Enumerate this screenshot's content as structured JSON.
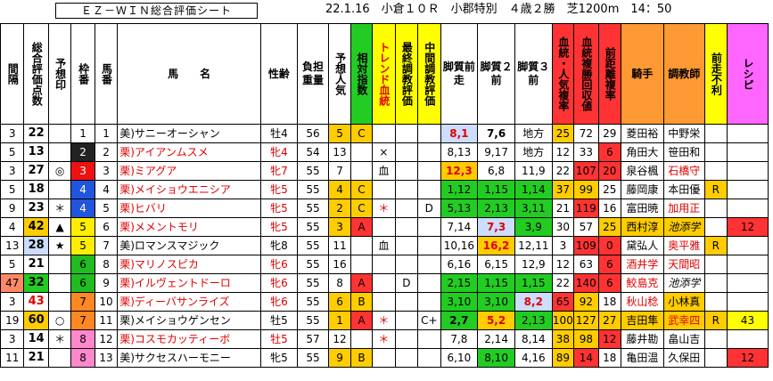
{
  "header": {
    "title": "ＥＺ－ＷＩＮ総合評価シート",
    "race_info": "22.1.16　小倉１０Ｒ　小郡特別　４歳２勝　芝1200m　14：50"
  },
  "columns": [
    {
      "key": "interval",
      "label": "間隔",
      "bg": "#ffffff",
      "color": "#000",
      "v": true
    },
    {
      "key": "score",
      "label": "総合評価点数",
      "bg": "#ffffff",
      "color": "#000",
      "v": true
    },
    {
      "key": "mark",
      "label": "予想印",
      "bg": "#ffffff",
      "color": "#000",
      "v": true
    },
    {
      "key": "waku",
      "label": "枠番",
      "bg": "#ffffff",
      "color": "#000",
      "v": true
    },
    {
      "key": "uma",
      "label": "馬番",
      "bg": "#ffffff",
      "color": "#000",
      "v": true
    },
    {
      "key": "name",
      "label": "馬　　名",
      "bg": "#ffffff",
      "color": "#000",
      "v": false
    },
    {
      "key": "sexage",
      "label": "性齢",
      "bg": "#ffffff",
      "color": "#000",
      "v": false
    },
    {
      "key": "weight",
      "label": "負担重量",
      "bg": "#ffffff",
      "color": "#000",
      "v": false
    },
    {
      "key": "pop",
      "label": "予想人気",
      "bg": "#ffffff",
      "color": "#000",
      "v": true
    },
    {
      "key": "rel",
      "label": "相対指数",
      "bg": "#22cc22",
      "color": "#000",
      "v": true
    },
    {
      "key": "trend",
      "label": "トレンド血統",
      "bg": "#ffff00",
      "color": "#e00000",
      "v": true
    },
    {
      "key": "final",
      "label": "最終調教評価",
      "bg": "#ffff00",
      "color": "#000",
      "v": true
    },
    {
      "key": "mid",
      "label": "中間調教評価",
      "bg": "#ffff00",
      "color": "#000",
      "v": true
    },
    {
      "key": "q1",
      "label": "脚質前走",
      "bg": "#ffffff",
      "color": "#000",
      "v": false
    },
    {
      "key": "q2",
      "label": "脚質２前",
      "bg": "#ffffff",
      "color": "#000",
      "v": false
    },
    {
      "key": "q3",
      "label": "脚質３前",
      "bg": "#ffffff",
      "color": "#000",
      "v": false
    },
    {
      "key": "bloodpop",
      "label": "血統・人気複率",
      "bg": "#ff3333",
      "color": "#000",
      "v": true
    },
    {
      "key": "bloodrec",
      "label": "血統複勝回収値",
      "bg": "#ff3333",
      "color": "#000",
      "v": true
    },
    {
      "key": "dist",
      "label": "前距離複率",
      "bg": "#ff3333",
      "color": "#000",
      "v": true
    },
    {
      "key": "jockey",
      "label": "騎手",
      "bg": "#ff9933",
      "color": "#000",
      "v": false
    },
    {
      "key": "trainer",
      "label": "調教師",
      "bg": "#ff9933",
      "color": "#000",
      "v": false
    },
    {
      "key": "prev",
      "label": "前走不利",
      "bg": "#ffff00",
      "color": "#000",
      "v": true
    },
    {
      "key": "recipe",
      "label": "レシピ",
      "bg": "#ff66ff",
      "color": "#000",
      "v": true
    }
  ],
  "rows": [
    {
      "interval": "3",
      "score": "22",
      "mark": "",
      "waku": "1",
      "uma": "1",
      "name": "美)サニーオーシャン",
      "name_color": "#000",
      "sexage": "牡4",
      "weight": "56",
      "pop": "5",
      "rel": "C",
      "trend": "",
      "final": "",
      "mid": "",
      "q1": "8,1",
      "q2": "7,6",
      "q3": "地方",
      "bloodpop": "25",
      "bloodrec": "72",
      "dist": "29",
      "jockey": "菱田裕",
      "trainer": "中野栄",
      "prev": "",
      "recipe": ""
    },
    {
      "interval": "5",
      "score": "13",
      "mark": "",
      "waku": "2",
      "uma": "2",
      "name": "栗)アイアンムスメ",
      "name_color": "#e00000",
      "sexage": "牝4",
      "weight": "54",
      "pop": "13",
      "rel": "",
      "trend": "×",
      "final": "",
      "mid": "",
      "q1": "8,13",
      "q2": "9,17",
      "q3": "地方",
      "bloodpop": "12",
      "bloodrec": "33",
      "dist": "6",
      "jockey": "角田大",
      "trainer": "笹田和",
      "prev": "",
      "recipe": ""
    },
    {
      "interval": "3",
      "score": "27",
      "mark": "◎",
      "waku": "3",
      "uma": "3",
      "name": "栗)ミアグア",
      "name_color": "#e00000",
      "sexage": "牝7",
      "weight": "55",
      "pop": "7",
      "rel": "",
      "trend": "血",
      "final": "",
      "mid": "",
      "q1": "12,3",
      "q2": "6,8",
      "q3": "11,9",
      "bloodpop": "22",
      "bloodrec": "107",
      "dist": "20",
      "jockey": "泉谷楓",
      "trainer": "石橋守",
      "prev": "",
      "recipe": ""
    },
    {
      "interval": "5",
      "score": "18",
      "mark": "",
      "waku": "4",
      "uma": "4",
      "name": "栗)メイショウエニシア",
      "name_color": "#e00000",
      "sexage": "牝5",
      "weight": "55",
      "pop": "4",
      "rel": "C",
      "trend": "",
      "final": "",
      "mid": "",
      "q1": "1,12",
      "q2": "1,15",
      "q3": "1,14",
      "bloodpop": "37",
      "bloodrec": "99",
      "dist": "25",
      "jockey": "藤岡康",
      "trainer": "本田優",
      "prev": "R",
      "recipe": ""
    },
    {
      "interval": "9",
      "score": "23",
      "mark": "＊",
      "waku": "4",
      "uma": "5",
      "name": "栗)ヒバリ",
      "name_color": "#e00000",
      "sexage": "牝5",
      "weight": "55",
      "pop": "2",
      "rel": "C",
      "trend": "＊",
      "final": "",
      "mid": "D",
      "q1": "5,13",
      "q2": "2,13",
      "q3": "3,11",
      "bloodpop": "21",
      "bloodrec": "119",
      "dist": "16",
      "jockey": "富田暁",
      "trainer": "加用正",
      "prev": "",
      "recipe": ""
    },
    {
      "interval": "4",
      "score": "42",
      "mark": "▲",
      "waku": "5",
      "uma": "6",
      "name": "栗)メメントモリ",
      "name_color": "#e00000",
      "sexage": "牝5",
      "weight": "55",
      "pop": "3",
      "rel": "A",
      "trend": "",
      "final": "",
      "mid": "",
      "q1": "7,14",
      "q2": "7,3",
      "q3": "3,9",
      "bloodpop": "30",
      "bloodrec": "57",
      "dist": "25",
      "jockey": "西村淳",
      "trainer": "池添学",
      "prev": "",
      "recipe": "12"
    },
    {
      "interval": "13",
      "score": "28",
      "mark": "★",
      "waku": "5",
      "uma": "7",
      "name": "美)ロマンスマジック",
      "name_color": "#000",
      "sexage": "牝8",
      "weight": "55",
      "pop": "11",
      "rel": "",
      "trend": "血",
      "final": "",
      "mid": "",
      "q1": "10,16",
      "q2": "16,2",
      "q3": "12,11",
      "bloodpop": "3",
      "bloodrec": "109",
      "dist": "0",
      "jockey": "黛弘人",
      "trainer": "奥平雅",
      "prev": "R",
      "recipe": ""
    },
    {
      "interval": "5",
      "score": "21",
      "mark": "",
      "waku": "6",
      "uma": "8",
      "name": "栗)マリノスピカ",
      "name_color": "#e00000",
      "sexage": "牝6",
      "weight": "55",
      "pop": "16",
      "rel": "",
      "trend": "",
      "final": "",
      "mid": "",
      "q1": "6,16",
      "q2": "6,15",
      "q3": "12,9",
      "bloodpop": "12",
      "bloodrec": "63",
      "dist": "6",
      "jockey": "酒井学",
      "trainer": "天間昭",
      "prev": "",
      "recipe": ""
    },
    {
      "interval": "47",
      "score": "32",
      "mark": "",
      "waku": "6",
      "uma": "9",
      "name": "栗)イルヴェントドーロ",
      "name_color": "#e00000",
      "sexage": "牝6",
      "weight": "55",
      "pop": "8",
      "rel": "A",
      "trend": "",
      "final": "D",
      "mid": "",
      "q1": "2,15",
      "q2": "1,15",
      "q3": "1,15",
      "bloodpop": "22",
      "bloodrec": "140",
      "dist": "6",
      "jockey": "鮫島克",
      "trainer": "池添学",
      "prev": "",
      "recipe": ""
    },
    {
      "interval": "3",
      "score": "43",
      "mark": "",
      "waku": "7",
      "uma": "10",
      "name": "栗)ディーバサンライズ",
      "name_color": "#e00000",
      "sexage": "牝6",
      "weight": "55",
      "pop": "6",
      "rel": "B",
      "trend": "",
      "final": "",
      "mid": "",
      "q1": "3,10",
      "q2": "3,10",
      "q3": "8,2",
      "bloodpop": "65",
      "bloodrec": "92",
      "dist": "18",
      "jockey": "秋山稔",
      "trainer": "小林真",
      "prev": "",
      "recipe": ""
    },
    {
      "interval": "19",
      "score": "60",
      "mark": "○",
      "waku": "7",
      "uma": "11",
      "name": "栗)メイショウゲンセン",
      "name_color": "#000",
      "sexage": "牡5",
      "weight": "55",
      "pop": "1",
      "rel": "A",
      "trend": "＊",
      "final": "",
      "mid": "C+",
      "q1": "2,7",
      "q2": "5,2",
      "q3": "2,13",
      "bloodpop": "100",
      "bloodrec": "127",
      "dist": "27",
      "jockey": "吉田隼",
      "trainer": "武幸四",
      "prev": "R",
      "recipe": "43"
    },
    {
      "interval": "3",
      "score": "14",
      "mark": "＊",
      "waku": "8",
      "uma": "12",
      "name": "栗)コスモカッティーボ",
      "name_color": "#e00000",
      "sexage": "牡5",
      "weight": "57",
      "pop": "12",
      "rel": "",
      "trend": "＊",
      "final": "",
      "mid": "",
      "q1": "7,8",
      "q2": "2,14",
      "q3": "8,14",
      "bloodpop": "38",
      "bloodrec": "98",
      "dist": "12",
      "jockey": "藤井勘",
      "trainer": "畠山吉",
      "prev": "",
      "recipe": ""
    },
    {
      "interval": "11",
      "score": "21",
      "mark": "",
      "waku": "8",
      "uma": "13",
      "name": "美)サクセスハーモニー",
      "name_color": "#000",
      "sexage": "牝5",
      "weight": "55",
      "pop": "9",
      "rel": "B",
      "trend": "",
      "final": "",
      "mid": "",
      "q1": "6,10",
      "q2": "8,10",
      "q3": "4,16",
      "bloodpop": "89",
      "bloodrec": "14",
      "dist": "18",
      "jockey": "亀田温",
      "trainer": "久保田",
      "prev": "",
      "recipe": "12"
    }
  ],
  "colors": {
    "waku": {
      "1": "#ffffff",
      "2": "#222222",
      "3": "#ee1111",
      "4": "#2255dd",
      "5": "#ffee00",
      "6": "#22bb22",
      "7": "#ff8822",
      "8": "#ff88cc"
    },
    "green": "#22cc22",
    "yellow": "#ffff00",
    "orange": "#ff9933",
    "red": "#ff3333",
    "darkred": "#dd0000",
    "pink": "#ff66ff",
    "lightblue": "#ccddff",
    "gold": "#ffcc00"
  },
  "cell_styles": [
    {
      "row": 0,
      "col": "q1",
      "bg": "#ccddff",
      "color": "#e00000",
      "bold": true
    },
    {
      "row": 0,
      "col": "q2",
      "bold": true
    },
    {
      "row": 0,
      "col": "pop",
      "bg": "#ffcc00"
    },
    {
      "row": 0,
      "col": "rel",
      "bg": "#ffcc00"
    },
    {
      "row": 0,
      "col": "bloodpop",
      "bg": "#ffcc00"
    },
    {
      "row": 0,
      "col": "trainer",
      "bg": "#ffffff"
    },
    {
      "row": 1,
      "col": "dist",
      "bg": "#ff3333"
    },
    {
      "row": 2,
      "col": "q1",
      "bg": "#ffcc00",
      "color": "#e00000",
      "bold": true
    },
    {
      "row": 2,
      "col": "bloodrec",
      "bg": "#ff3333"
    },
    {
      "row": 2,
      "col": "dist",
      "bg": "#ff3333"
    },
    {
      "row": 2,
      "col": "trainer",
      "color": "#e00000"
    },
    {
      "row": 3,
      "col": "pop",
      "bg": "#ffcc00"
    },
    {
      "row": 3,
      "col": "rel",
      "bg": "#ffcc00"
    },
    {
      "row": 3,
      "col": "q1",
      "bg": "#22cc22"
    },
    {
      "row": 3,
      "col": "q2",
      "bg": "#22cc22"
    },
    {
      "row": 3,
      "col": "q3",
      "bg": "#22cc22"
    },
    {
      "row": 3,
      "col": "bloodpop",
      "bg": "#ffcc00"
    },
    {
      "row": 3,
      "col": "bloodrec",
      "bg": "#ffcc00"
    },
    {
      "row": 3,
      "col": "prev",
      "bg": "#ffcc00"
    },
    {
      "row": 4,
      "col": "pop",
      "bg": "#ffcc00"
    },
    {
      "row": 4,
      "col": "rel",
      "bg": "#ffcc00"
    },
    {
      "row": 4,
      "col": "trend",
      "color": "#e00000"
    },
    {
      "row": 4,
      "col": "q1",
      "bg": "#22cc22"
    },
    {
      "row": 4,
      "col": "q2",
      "bg": "#22cc22"
    },
    {
      "row": 4,
      "col": "q3",
      "bg": "#22cc22"
    },
    {
      "row": 4,
      "col": "bloodrec",
      "bg": "#ff3333"
    },
    {
      "row": 4,
      "col": "trainer",
      "color": "#e00000"
    },
    {
      "row": 5,
      "col": "score",
      "bg": "#ffcc00",
      "bold": true
    },
    {
      "row": 5,
      "col": "pop",
      "bg": "#ffcc00"
    },
    {
      "row": 5,
      "col": "rel",
      "bg": "#ff3333"
    },
    {
      "row": 5,
      "col": "q2",
      "bg": "#ccddff",
      "color": "#e00000",
      "bold": true
    },
    {
      "row": 5,
      "col": "q3",
      "bg": "#22cc22"
    },
    {
      "row": 5,
      "col": "dist",
      "bg": "#ffcc00"
    },
    {
      "row": 5,
      "col": "jockey",
      "bg": "#ffcc00"
    },
    {
      "row": 5,
      "col": "trainer",
      "bg": "#ffcc00",
      "italic": true
    },
    {
      "row": 5,
      "col": "recipe",
      "bg": "#ff3333"
    },
    {
      "row": 6,
      "col": "score",
      "bg": "#ccddff",
      "bold": true
    },
    {
      "row": 6,
      "col": "q2",
      "bg": "#ffcc00",
      "color": "#e00000",
      "bold": true
    },
    {
      "row": 6,
      "col": "bloodrec",
      "bg": "#ff3333"
    },
    {
      "row": 6,
      "col": "dist",
      "bg": "#ff3333"
    },
    {
      "row": 6,
      "col": "trainer",
      "color": "#e00000"
    },
    {
      "row": 6,
      "col": "prev",
      "bg": "#ffcc00"
    },
    {
      "row": 7,
      "col": "dist",
      "bg": "#ff3333"
    },
    {
      "row": 7,
      "col": "jockey",
      "color": "#e00000"
    },
    {
      "row": 7,
      "col": "trainer",
      "color": "#e00000"
    },
    {
      "row": 8,
      "col": "interval",
      "bg": "#ff8866"
    },
    {
      "row": 8,
      "col": "score",
      "bg": "#22cc22",
      "bold": true
    },
    {
      "row": 8,
      "col": "rel",
      "bg": "#ff3333"
    },
    {
      "row": 8,
      "col": "q1",
      "bg": "#22cc22"
    },
    {
      "row": 8,
      "col": "q2",
      "bg": "#22cc22"
    },
    {
      "row": 8,
      "col": "q3",
      "bg": "#22cc22"
    },
    {
      "row": 8,
      "col": "bloodrec",
      "bg": "#ff3333"
    },
    {
      "row": 8,
      "col": "dist",
      "bg": "#ff3333"
    },
    {
      "row": 8,
      "col": "jockey",
      "color": "#e00000"
    },
    {
      "row": 8,
      "col": "trainer",
      "italic": true
    },
    {
      "row": 9,
      "col": "score",
      "color": "#e00000",
      "bold": true
    },
    {
      "row": 9,
      "col": "pop",
      "bg": "#ffcc00"
    },
    {
      "row": 9,
      "col": "rel",
      "bg": "#ffcc00"
    },
    {
      "row": 9,
      "col": "q1",
      "bg": "#22cc22"
    },
    {
      "row": 9,
      "col": "q2",
      "bg": "#22cc22"
    },
    {
      "row": 9,
      "col": "q3",
      "bg": "#ccddff",
      "color": "#e00000",
      "bold": true
    },
    {
      "row": 9,
      "col": "bloodpop",
      "bg": "#ff3333"
    },
    {
      "row": 9,
      "col": "bloodrec",
      "bg": "#ffcc00"
    },
    {
      "row": 9,
      "col": "jockey",
      "color": "#e00000"
    },
    {
      "row": 9,
      "col": "trainer",
      "bg": "#ffcc00"
    },
    {
      "row": 10,
      "col": "score",
      "bg": "#ffcc00",
      "bold": true
    },
    {
      "row": 10,
      "col": "pop",
      "bg": "#ffcc00"
    },
    {
      "row": 10,
      "col": "rel",
      "bg": "#ff3333"
    },
    {
      "row": 10,
      "col": "trend",
      "color": "#e00000"
    },
    {
      "row": 10,
      "col": "q1",
      "bg": "#22cc22",
      "bold": true
    },
    {
      "row": 10,
      "col": "q2",
      "bg": "#ffcc00",
      "color": "#e00000",
      "bold": true
    },
    {
      "row": 10,
      "col": "q3",
      "bg": "#22cc22"
    },
    {
      "row": 10,
      "col": "bloodpop",
      "bg": "#ffcc00"
    },
    {
      "row": 10,
      "col": "bloodrec",
      "bg": "#ffcc00"
    },
    {
      "row": 10,
      "col": "dist",
      "bg": "#ffcc00"
    },
    {
      "row": 10,
      "col": "jockey",
      "bg": "#ffcc00"
    },
    {
      "row": 10,
      "col": "trainer",
      "bg": "#ffcc00",
      "color": "#e00000"
    },
    {
      "row": 10,
      "col": "prev",
      "bg": "#ffcc00"
    },
    {
      "row": 10,
      "col": "recipe",
      "bg": "#ffff00"
    },
    {
      "row": 11,
      "col": "trend",
      "color": "#e00000"
    },
    {
      "row": 11,
      "col": "bloodpop",
      "bg": "#ffcc00"
    },
    {
      "row": 11,
      "col": "bloodrec",
      "bg": "#ffcc00"
    },
    {
      "row": 11,
      "col": "dist",
      "bg": "#ff3333"
    },
    {
      "row": 12,
      "col": "pop",
      "bg": "#ffcc00"
    },
    {
      "row": 12,
      "col": "rel",
      "bg": "#ffcc00"
    },
    {
      "row": 12,
      "col": "q2",
      "bg": "#22cc22"
    },
    {
      "row": 12,
      "col": "bloodpop",
      "bg": "#ffcc00"
    },
    {
      "row": 12,
      "col": "bloodrec",
      "bg": "#ff3333"
    },
    {
      "row": 12,
      "col": "recipe",
      "bg": "#ff3333"
    }
  ]
}
